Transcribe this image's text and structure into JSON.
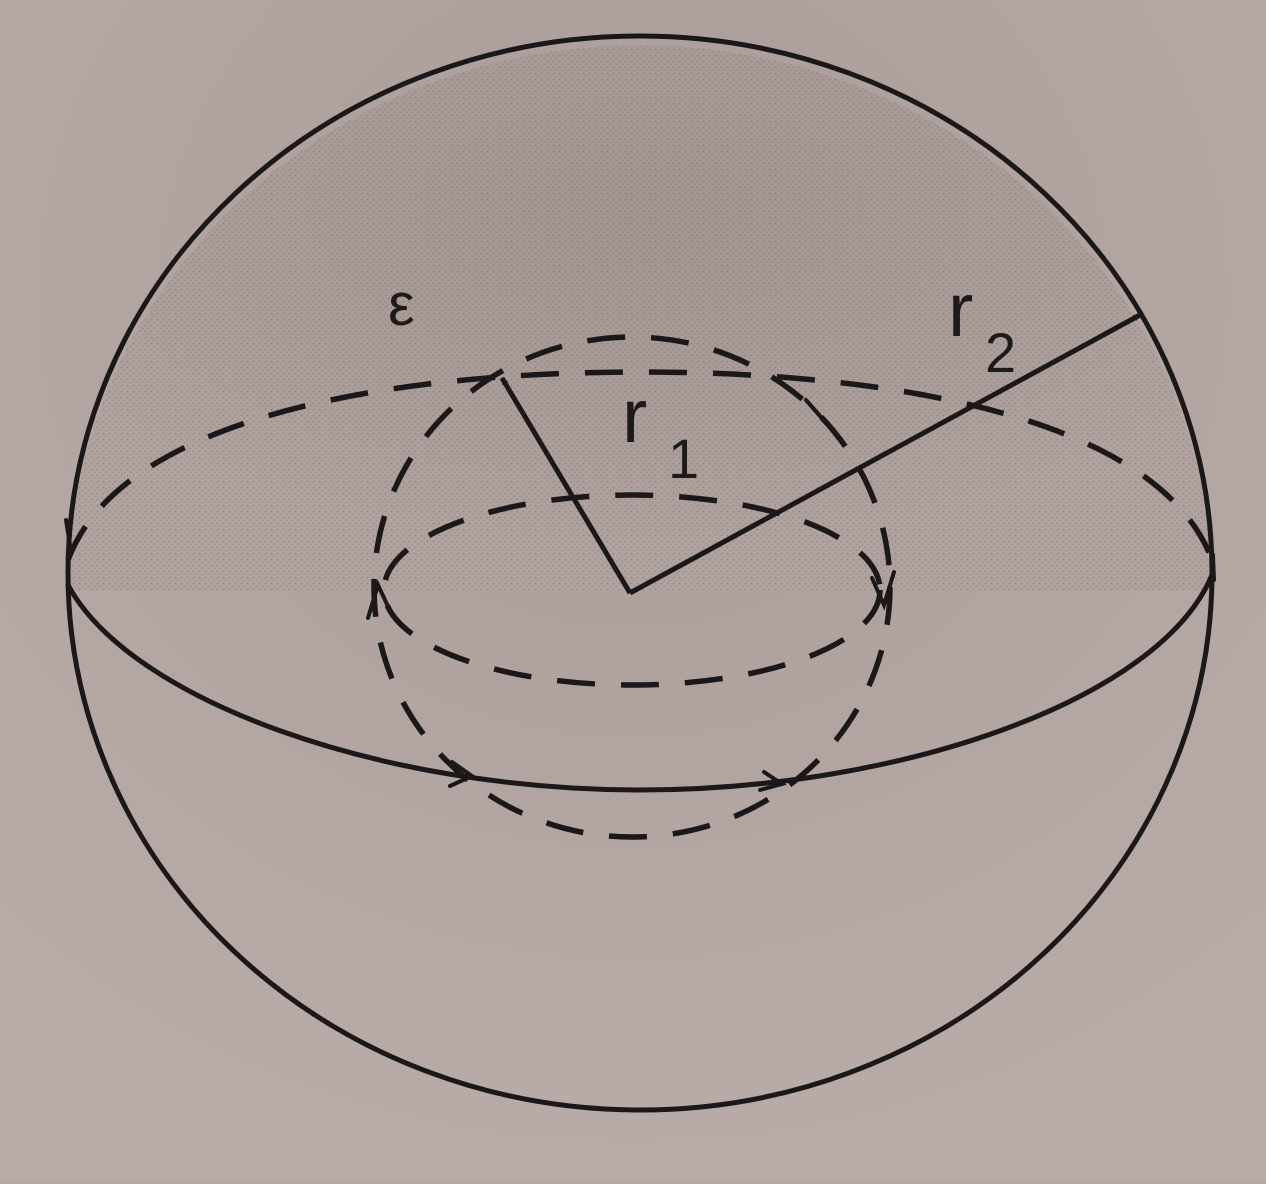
{
  "diagram": {
    "labels": {
      "epsilon": "ε",
      "r1_main": "r",
      "r1_sub": "1",
      "r2_main": "r",
      "r2_sub": "2"
    },
    "colors": {
      "paper": "#b5a7a3",
      "ink": "#1c1819"
    }
  }
}
